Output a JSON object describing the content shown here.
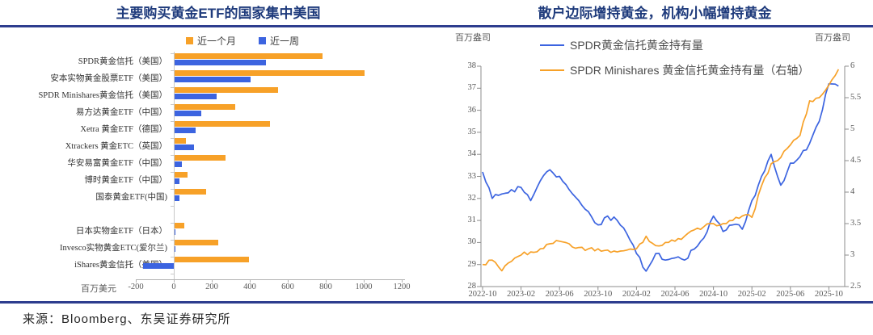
{
  "page": {
    "source_note": "来源：Bloomberg、东吴证券研究所"
  },
  "colors": {
    "orange": "#F7A128",
    "blue": "#3C64E0",
    "title_navy": "#1F3B7C",
    "divider_navy": "#2D3D8E",
    "axis_gray": "#8C8C8C",
    "tick_text": "#595959"
  },
  "chart_data": [
    {
      "type": "bar",
      "orientation": "horizontal",
      "title": "主要购买黄金ETF的国家集中美国",
      "unit_label": "百万美元",
      "xlim": [
        -200,
        1200
      ],
      "x_ticks": [
        -200,
        0,
        200,
        400,
        600,
        800,
        1000,
        1200
      ],
      "gap_after_index": 8,
      "categories": [
        "SPDR黄金信托（美国）",
        "安本实物黄金股票ETF（美国）",
        "SPDR Minishares黄金信托（美国）",
        "易方达黄金ETF（中国）",
        "Xetra 黄金ETF（德国）",
        "Xtrackers 黄金ETC（英国）",
        "华安易富黄金ETF（中国）",
        "博时黄金ETF（中国）",
        "国泰黄金ETF(中国)",
        "日本实物金ETF（日本）",
        "Invesco实物黄金ETC(爱尔兰)",
        "iShares黄金信托（美国）"
      ],
      "series": [
        {
          "name": "近一个月",
          "color": "#F7A128",
          "values": [
            780,
            1000,
            545,
            320,
            500,
            60,
            270,
            70,
            165,
            50,
            230,
            390
          ]
        },
        {
          "name": "近一周",
          "color": "#3C64E0",
          "values": [
            480,
            400,
            220,
            140,
            110,
            100,
            40,
            25,
            25,
            5,
            5,
            -160
          ]
        }
      ]
    },
    {
      "type": "line",
      "title": "散户边际增持黄金，机构小幅增持黄金",
      "left_axis_label": "百万盎司",
      "right_axis_label": "百万盎司",
      "left_ylim": [
        28,
        38
      ],
      "left_ticks": [
        28,
        29,
        30,
        31,
        32,
        33,
        34,
        35,
        36,
        37,
        38
      ],
      "right_ylim": [
        2.5,
        6
      ],
      "right_ticks": [
        2.5,
        3,
        3.5,
        4,
        4.5,
        5,
        5.5,
        6
      ],
      "x_tick_labels": [
        "2022-10",
        "2023-02",
        "2023-06",
        "2023-10",
        "2024-02",
        "2024-06",
        "2024-10",
        "2025-02",
        "2025-06",
        "2025-10"
      ],
      "x_months": [
        "2022-10",
        "2022-11",
        "2022-12",
        "2023-01",
        "2023-02",
        "2023-03",
        "2023-04",
        "2023-05",
        "2023-06",
        "2023-07",
        "2023-08",
        "2023-09",
        "2023-10",
        "2023-11",
        "2023-12",
        "2024-01",
        "2024-02",
        "2024-03",
        "2024-04",
        "2024-05",
        "2024-06",
        "2024-07",
        "2024-08",
        "2024-09",
        "2024-10",
        "2024-11",
        "2024-12",
        "2025-01",
        "2025-02",
        "2025-03",
        "2025-04",
        "2025-05",
        "2025-06",
        "2025-07",
        "2025-08",
        "2025-09",
        "2025-10",
        "2025-11"
      ],
      "series": [
        {
          "name": "SPDR黄金信托黄金持有量",
          "axis": "left",
          "color": "#3C64E0",
          "values": [
            33.2,
            32.0,
            32.2,
            32.4,
            32.5,
            31.9,
            32.8,
            33.3,
            33.0,
            32.4,
            31.9,
            31.4,
            30.8,
            31.2,
            31.0,
            30.4,
            29.5,
            28.7,
            29.5,
            29.2,
            29.3,
            29.2,
            29.7,
            30.2,
            31.2,
            30.5,
            30.8,
            30.6,
            31.9,
            33.0,
            34.0,
            32.6,
            33.6,
            33.9,
            34.5,
            35.5,
            37.2,
            37.1
          ]
        },
        {
          "name": "SPDR Minishares 黄金信托黄金持有量（右轴）",
          "axis": "right",
          "color": "#F7A128",
          "values": [
            2.85,
            2.92,
            2.75,
            2.9,
            3.0,
            3.05,
            3.1,
            3.18,
            3.22,
            3.18,
            3.12,
            3.1,
            3.1,
            3.08,
            3.05,
            3.08,
            3.1,
            3.3,
            3.15,
            3.2,
            3.22,
            3.3,
            3.4,
            3.45,
            3.5,
            3.5,
            3.55,
            3.62,
            3.6,
            4.1,
            4.45,
            4.55,
            4.75,
            4.9,
            5.45,
            5.5,
            5.7,
            5.95
          ]
        }
      ]
    }
  ]
}
